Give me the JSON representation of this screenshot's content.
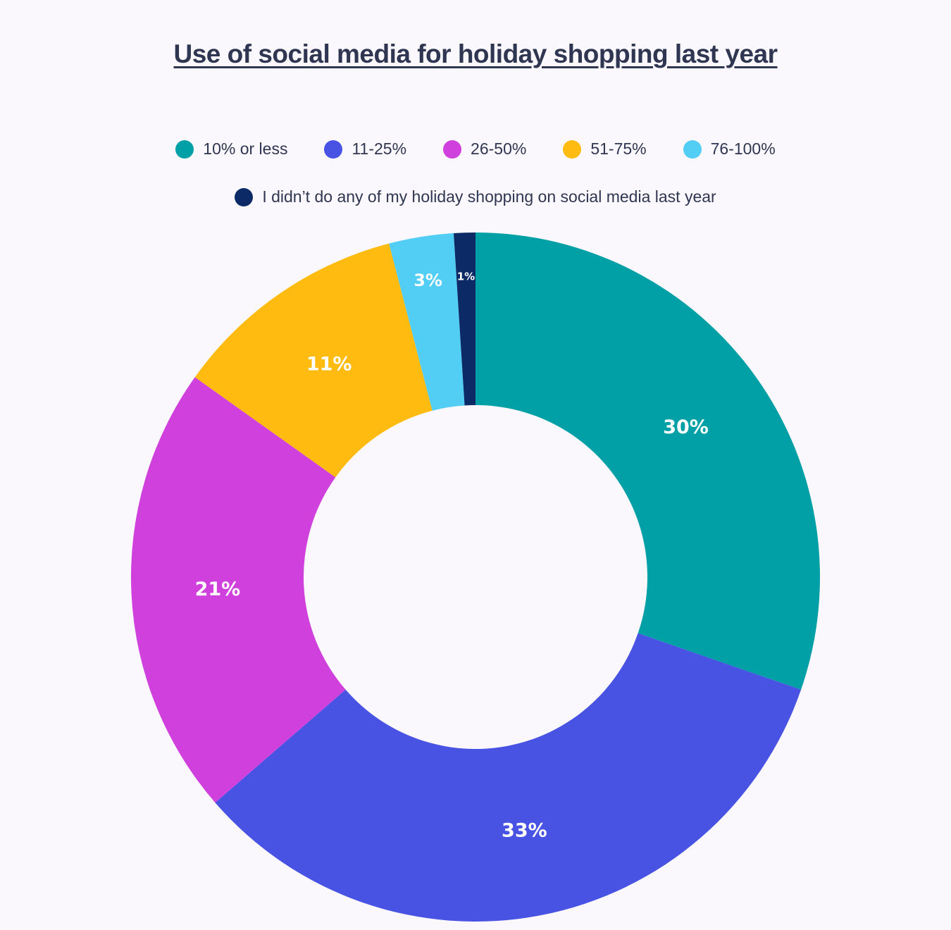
{
  "chart_data": {
    "type": "pie",
    "title": "Use of social media for holiday shopping last year",
    "series": [
      {
        "name": "10% or less",
        "value": 30,
        "label": "30%",
        "color": "#00a0a6"
      },
      {
        "name": "11-25%",
        "value": 33,
        "label": "33%",
        "color": "#4853e4"
      },
      {
        "name": "26-50%",
        "value": 21,
        "label": "21%",
        "color": "#cf40dc"
      },
      {
        "name": "51-75%",
        "value": 11,
        "label": "11%",
        "color": "#ffbb10"
      },
      {
        "name": "76-100%",
        "value": 3,
        "label": "3%",
        "color": "#52cdf4"
      },
      {
        "name": "I didn’t do any of my holiday shopping on social media last year",
        "value": 1,
        "label": "1%",
        "color": "#0b2a66"
      }
    ],
    "legend_position": "top",
    "style": "donut"
  }
}
